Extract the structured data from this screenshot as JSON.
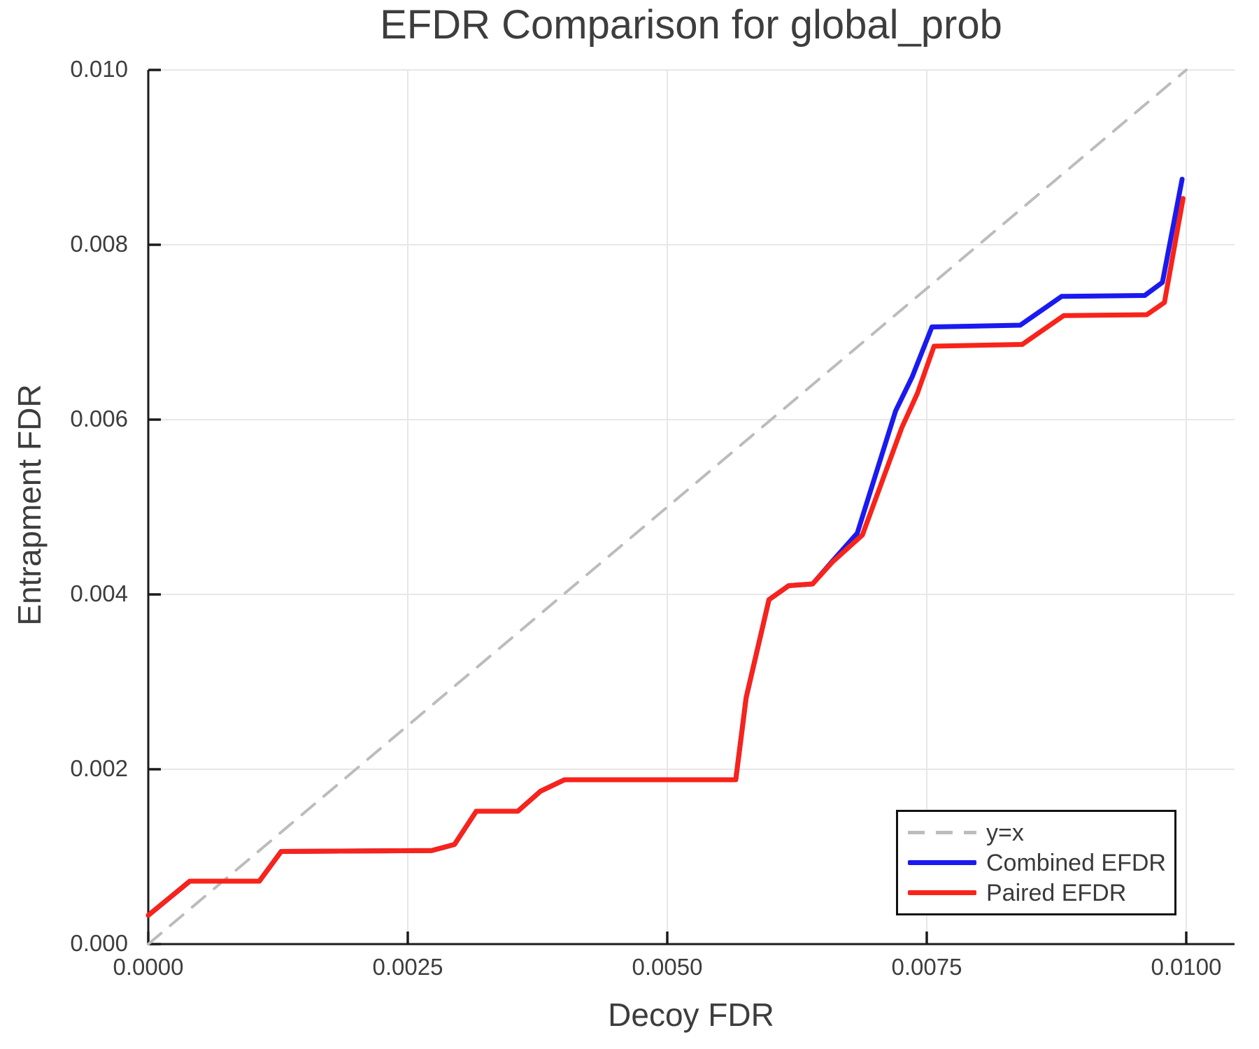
{
  "title": "EFDR Comparison for global_prob",
  "colors": {
    "identity_line": "#bcbcbc",
    "combined_line": "#1a1af0",
    "paired_line": "#f8231a",
    "grid": "#e7e7e7",
    "spine": "#1b1b1b",
    "text": "#3d3d3d"
  },
  "chart_data": {
    "type": "line",
    "title": "EFDR Comparison for global_prob",
    "xlabel": "Decoy FDR",
    "ylabel": "Entrapment FDR",
    "xlim": [
      0,
      0.010465
    ],
    "ylim": [
      0,
      0.01
    ],
    "grid": true,
    "legend_position": "lower right",
    "xticks": {
      "values": [
        0,
        0.0025,
        0.005,
        0.0075,
        0.01
      ],
      "labels": [
        "0.0000",
        "0.0025",
        "0.0050",
        "0.0075",
        "0.0100"
      ]
    },
    "yticks": {
      "values": [
        0,
        0.002,
        0.004,
        0.006,
        0.008,
        0.01
      ],
      "labels": [
        "0.000",
        "0.002",
        "0.004",
        "0.006",
        "0.008",
        "0.010"
      ]
    },
    "series": [
      {
        "name": "y=x",
        "color": "#bcbcbc",
        "dash": true,
        "width": 4,
        "points": [
          [
            0,
            0
          ],
          [
            0.01,
            0.01
          ]
        ]
      },
      {
        "name": "Combined EFDR",
        "color": "#1a1af0",
        "dash": false,
        "width": 7,
        "points": [
          [
            0.0,
            0.00033
          ],
          [
            0.0004,
            0.00072
          ],
          [
            0.00107,
            0.00072
          ],
          [
            0.00128,
            0.00106
          ],
          [
            0.00273,
            0.00107
          ],
          [
            0.00295,
            0.00114
          ],
          [
            0.00316,
            0.00152
          ],
          [
            0.00356,
            0.00152
          ],
          [
            0.00378,
            0.00175
          ],
          [
            0.00401,
            0.00188
          ],
          [
            0.00566,
            0.00188
          ],
          [
            0.00576,
            0.00282
          ],
          [
            0.00598,
            0.00394
          ],
          [
            0.00617,
            0.0041
          ],
          [
            0.0064,
            0.00412
          ],
          [
            0.00659,
            0.00438
          ],
          [
            0.00683,
            0.0047
          ],
          [
            0.0072,
            0.0061
          ],
          [
            0.00736,
            0.00649
          ],
          [
            0.00755,
            0.00706
          ],
          [
            0.0084,
            0.00708
          ],
          [
            0.0088,
            0.00741
          ],
          [
            0.0096,
            0.00742
          ],
          [
            0.00977,
            0.00757
          ],
          [
            0.00996,
            0.00875
          ]
        ]
      },
      {
        "name": "Paired EFDR",
        "color": "#f8231a",
        "dash": false,
        "width": 7,
        "points": [
          [
            0.0,
            0.00033
          ],
          [
            0.0004,
            0.00072
          ],
          [
            0.00107,
            0.00072
          ],
          [
            0.00128,
            0.00106
          ],
          [
            0.00273,
            0.00107
          ],
          [
            0.00295,
            0.00114
          ],
          [
            0.00316,
            0.00152
          ],
          [
            0.00356,
            0.00152
          ],
          [
            0.00378,
            0.00175
          ],
          [
            0.00401,
            0.00188
          ],
          [
            0.00566,
            0.00188
          ],
          [
            0.00576,
            0.00282
          ],
          [
            0.00598,
            0.00394
          ],
          [
            0.00617,
            0.0041
          ],
          [
            0.0064,
            0.00412
          ],
          [
            0.00659,
            0.00437
          ],
          [
            0.00688,
            0.00468
          ],
          [
            0.00726,
            0.00591
          ],
          [
            0.00741,
            0.0063
          ],
          [
            0.00757,
            0.00684
          ],
          [
            0.00842,
            0.00686
          ],
          [
            0.00882,
            0.00719
          ],
          [
            0.00962,
            0.0072
          ],
          [
            0.00979,
            0.00734
          ],
          [
            0.00997,
            0.00853
          ]
        ]
      }
    ]
  }
}
